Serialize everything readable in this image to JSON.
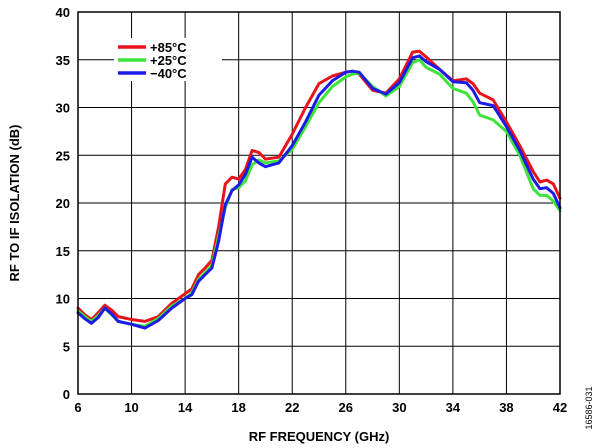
{
  "chart_data": {
    "type": "line",
    "xlabel": "RF FREQUENCY (GHz)",
    "ylabel": "RF TO IF ISOLATION (dB)",
    "xlim": [
      6,
      42
    ],
    "ylim": [
      0,
      40
    ],
    "xticks": [
      6,
      10,
      14,
      18,
      22,
      26,
      30,
      34,
      38,
      42
    ],
    "yticks": [
      0,
      5,
      10,
      15,
      20,
      25,
      30,
      35,
      40
    ],
    "grid": true,
    "legend_position": "top-left",
    "figure_id": "16586-031",
    "series": [
      {
        "name": "+85°C",
        "color": "#e8131b",
        "points": [
          [
            6,
            9.0
          ],
          [
            6.5,
            8.3
          ],
          [
            7,
            7.8
          ],
          [
            7.5,
            8.5
          ],
          [
            8,
            9.3
          ],
          [
            8.5,
            8.8
          ],
          [
            9,
            8.1
          ],
          [
            10,
            7.8
          ],
          [
            11,
            7.6
          ],
          [
            12,
            8.1
          ],
          [
            13,
            9.5
          ],
          [
            14,
            10.5
          ],
          [
            14.5,
            11.0
          ],
          [
            15,
            12.5
          ],
          [
            15.5,
            13.2
          ],
          [
            16,
            14.0
          ],
          [
            16.5,
            17.5
          ],
          [
            17,
            22.0
          ],
          [
            17.5,
            22.7
          ],
          [
            18,
            22.5
          ],
          [
            18.5,
            23.5
          ],
          [
            19,
            25.5
          ],
          [
            19.5,
            25.3
          ],
          [
            20,
            24.6
          ],
          [
            21,
            24.8
          ],
          [
            22,
            27.2
          ],
          [
            23,
            30.0
          ],
          [
            24,
            32.5
          ],
          [
            25,
            33.3
          ],
          [
            26,
            33.7
          ],
          [
            26.5,
            33.8
          ],
          [
            27,
            33.5
          ],
          [
            28,
            31.8
          ],
          [
            29,
            31.5
          ],
          [
            30,
            33.0
          ],
          [
            31,
            35.8
          ],
          [
            31.5,
            35.9
          ],
          [
            32,
            35.3
          ],
          [
            33,
            34.0
          ],
          [
            34,
            32.8
          ],
          [
            35,
            33.0
          ],
          [
            35.5,
            32.5
          ],
          [
            36,
            31.5
          ],
          [
            37,
            30.8
          ],
          [
            38,
            28.5
          ],
          [
            39,
            26.0
          ],
          [
            40,
            23.3
          ],
          [
            40.5,
            22.2
          ],
          [
            41,
            22.4
          ],
          [
            41.5,
            22.0
          ],
          [
            42,
            20.5
          ]
        ]
      },
      {
        "name": "+25°C",
        "color": "#3ee33a",
        "points": [
          [
            6,
            8.7
          ],
          [
            6.5,
            8.1
          ],
          [
            7,
            7.6
          ],
          [
            7.5,
            8.2
          ],
          [
            8,
            9.0
          ],
          [
            8.5,
            8.3
          ],
          [
            9,
            7.6
          ],
          [
            10,
            7.3
          ],
          [
            11,
            7.1
          ],
          [
            12,
            7.9
          ],
          [
            13,
            9.2
          ],
          [
            14,
            10.0
          ],
          [
            14.5,
            10.6
          ],
          [
            15,
            12.0
          ],
          [
            15.5,
            12.7
          ],
          [
            16,
            13.5
          ],
          [
            16.5,
            16.5
          ],
          [
            17,
            19.5
          ],
          [
            17.5,
            21.4
          ],
          [
            18,
            21.6
          ],
          [
            18.5,
            22.3
          ],
          [
            19,
            24.0
          ],
          [
            19.5,
            24.5
          ],
          [
            20,
            24.2
          ],
          [
            21,
            24.4
          ],
          [
            22,
            25.6
          ],
          [
            23,
            28.0
          ],
          [
            24,
            30.5
          ],
          [
            25,
            32.2
          ],
          [
            26,
            33.2
          ],
          [
            26.5,
            33.5
          ],
          [
            27,
            33.6
          ],
          [
            28,
            32.2
          ],
          [
            29,
            31.2
          ],
          [
            30,
            32.2
          ],
          [
            31,
            34.7
          ],
          [
            31.5,
            35.0
          ],
          [
            32,
            34.2
          ],
          [
            33,
            33.5
          ],
          [
            34,
            32.0
          ],
          [
            35,
            31.5
          ],
          [
            35.5,
            30.6
          ],
          [
            36,
            29.2
          ],
          [
            37,
            28.7
          ],
          [
            38,
            27.5
          ],
          [
            39,
            25.0
          ],
          [
            40,
            21.5
          ],
          [
            40.5,
            20.8
          ],
          [
            41,
            20.8
          ],
          [
            41.5,
            20.2
          ],
          [
            42,
            19.2
          ]
        ]
      },
      {
        "name": "−40°C",
        "color": "#1c1ce8",
        "points": [
          [
            6,
            8.5
          ],
          [
            6.5,
            7.9
          ],
          [
            7,
            7.4
          ],
          [
            7.5,
            8.0
          ],
          [
            8,
            9.0
          ],
          [
            8.5,
            8.4
          ],
          [
            9,
            7.6
          ],
          [
            10,
            7.3
          ],
          [
            11,
            6.9
          ],
          [
            12,
            7.7
          ],
          [
            13,
            9.0
          ],
          [
            14,
            10.0
          ],
          [
            14.5,
            10.4
          ],
          [
            15,
            11.8
          ],
          [
            15.5,
            12.5
          ],
          [
            16,
            13.2
          ],
          [
            16.5,
            16.0
          ],
          [
            17,
            19.8
          ],
          [
            17.5,
            21.3
          ],
          [
            18,
            21.9
          ],
          [
            18.5,
            23.0
          ],
          [
            19,
            24.8
          ],
          [
            19.5,
            24.2
          ],
          [
            20,
            23.8
          ],
          [
            21,
            24.2
          ],
          [
            22,
            26.0
          ],
          [
            23,
            28.5
          ],
          [
            24,
            31.3
          ],
          [
            25,
            32.8
          ],
          [
            26,
            33.7
          ],
          [
            26.5,
            33.8
          ],
          [
            27,
            33.7
          ],
          [
            28,
            32.0
          ],
          [
            29,
            31.4
          ],
          [
            30,
            32.6
          ],
          [
            31,
            35.2
          ],
          [
            31.5,
            35.4
          ],
          [
            32,
            34.8
          ],
          [
            33,
            34.0
          ],
          [
            34,
            32.7
          ],
          [
            35,
            32.6
          ],
          [
            35.5,
            31.8
          ],
          [
            36,
            30.5
          ],
          [
            37,
            30.2
          ],
          [
            38,
            28.0
          ],
          [
            39,
            25.5
          ],
          [
            40,
            22.5
          ],
          [
            40.5,
            21.5
          ],
          [
            41,
            21.6
          ],
          [
            41.5,
            21.0
          ],
          [
            42,
            19.5
          ]
        ]
      }
    ]
  }
}
